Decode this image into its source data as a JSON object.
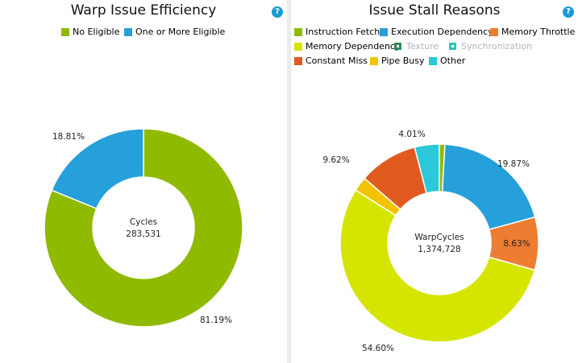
{
  "chart_data": [
    {
      "type": "pie",
      "title": "Warp Issue Efficiency",
      "center_label": "Cycles",
      "center_value": "283,531",
      "legend": [
        {
          "name": "No Eligible",
          "color": "#8fba00",
          "enabled": true
        },
        {
          "name": "One or More Eligible",
          "color": "#26a0da",
          "enabled": true
        }
      ],
      "slices": [
        {
          "name": "No Eligible",
          "value": 81.19,
          "label": "81.19%",
          "color": "#8fba00"
        },
        {
          "name": "One or More Eligible",
          "value": 18.81,
          "label": "18.81%",
          "color": "#26a0da"
        }
      ]
    },
    {
      "type": "pie",
      "title": "Issue Stall Reasons",
      "center_label": "WarpCycles",
      "center_value": "1,374,728",
      "legend": [
        {
          "name": "Instruction Fetch",
          "color": "#8fba00",
          "enabled": true
        },
        {
          "name": "Execution Dependency",
          "color": "#26a0da",
          "enabled": true
        },
        {
          "name": "Memory Throttle",
          "color": "#ed7d31",
          "enabled": true
        },
        {
          "name": "Memory Dependency",
          "color": "#d6e500",
          "enabled": true
        },
        {
          "name": "Texture",
          "color": "#2e8b57",
          "enabled": false
        },
        {
          "name": "Synchronization",
          "color": "#2ec4b6",
          "enabled": false
        },
        {
          "name": "Constant Miss",
          "color": "#e05a1f",
          "enabled": true
        },
        {
          "name": "Pipe Busy",
          "color": "#f2c300",
          "enabled": true
        },
        {
          "name": "Other",
          "color": "#2ac8d8",
          "enabled": true
        }
      ],
      "slices": [
        {
          "name": "Instruction Fetch",
          "value": 0.9,
          "label": "",
          "color": "#8fba00"
        },
        {
          "name": "Execution Dependency",
          "value": 19.87,
          "label": "19.87%",
          "color": "#26a0da"
        },
        {
          "name": "Memory Throttle",
          "value": 8.63,
          "label": "8.63%",
          "color": "#ed7d31"
        },
        {
          "name": "Memory Dependency",
          "value": 54.6,
          "label": "54.60%",
          "color": "#d6e500"
        },
        {
          "name": "Pipe Busy",
          "value": 2.37,
          "label": "",
          "color": "#f2c300"
        },
        {
          "name": "Constant Miss",
          "value": 9.62,
          "label": "9.62%",
          "color": "#e05a1f"
        },
        {
          "name": "Other",
          "value": 4.01,
          "label": "4.01%",
          "color": "#2ac8d8"
        }
      ]
    }
  ],
  "help_icon": "?"
}
